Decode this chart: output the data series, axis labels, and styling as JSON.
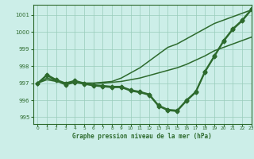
{
  "background_color": "#cceee8",
  "grid_color": "#99ccbb",
  "line_color": "#2d6a2d",
  "title": "Graphe pression niveau de la mer (hPa)",
  "xlim": [
    -0.5,
    23
  ],
  "ylim": [
    994.6,
    1001.6
  ],
  "yticks": [
    995,
    996,
    997,
    998,
    999,
    1000,
    1001
  ],
  "xticks": [
    0,
    1,
    2,
    3,
    4,
    5,
    6,
    7,
    8,
    9,
    10,
    11,
    12,
    13,
    14,
    15,
    16,
    17,
    18,
    19,
    20,
    21,
    22,
    23
  ],
  "series": [
    {
      "x": [
        0,
        1,
        2,
        3,
        4,
        5,
        6,
        7,
        8,
        9,
        10,
        11,
        12,
        13,
        14,
        15,
        16,
        17,
        18,
        19,
        20,
        21,
        22,
        23
      ],
      "y": [
        997.0,
        997.5,
        997.2,
        997.0,
        997.15,
        997.0,
        996.9,
        996.85,
        996.8,
        996.8,
        996.6,
        996.5,
        996.35,
        995.7,
        995.45,
        995.4,
        996.0,
        996.5,
        997.7,
        998.6,
        999.5,
        1000.2,
        1000.7,
        1001.35
      ],
      "marker": "D",
      "markersize": 2.5,
      "linewidth": 1.3
    },
    {
      "x": [
        0,
        1,
        2,
        3,
        4,
        5,
        6,
        7,
        8,
        9,
        10,
        11,
        12,
        13,
        14,
        15,
        16,
        17,
        18,
        19,
        20,
        21,
        22,
        23
      ],
      "y": [
        997.0,
        997.2,
        997.1,
        997.0,
        997.05,
        997.0,
        997.0,
        997.0,
        997.05,
        997.1,
        997.2,
        997.3,
        997.45,
        997.6,
        997.75,
        997.9,
        998.1,
        998.35,
        998.6,
        998.9,
        999.1,
        999.3,
        999.5,
        999.7
      ],
      "marker": null,
      "markersize": 0,
      "linewidth": 1.1
    },
    {
      "x": [
        0,
        1,
        2,
        3,
        4,
        5,
        6,
        7,
        8,
        9,
        10,
        11,
        12,
        13,
        14,
        15,
        16,
        17,
        18,
        19,
        20,
        21,
        22,
        23
      ],
      "y": [
        997.0,
        997.3,
        997.15,
        997.0,
        997.1,
        997.0,
        997.0,
        997.05,
        997.1,
        997.3,
        997.6,
        997.9,
        998.3,
        998.7,
        999.1,
        999.3,
        999.6,
        999.9,
        1000.2,
        1000.5,
        1000.7,
        1000.9,
        1001.1,
        1001.3
      ],
      "marker": null,
      "markersize": 0,
      "linewidth": 1.1
    },
    {
      "x": [
        0,
        1,
        2,
        3,
        4,
        5,
        6,
        7,
        8,
        9,
        10,
        11,
        12,
        13,
        14,
        15,
        16,
        17,
        18,
        19,
        20,
        21,
        22,
        23
      ],
      "y": [
        997.0,
        997.45,
        997.15,
        996.9,
        997.05,
        996.95,
        996.85,
        996.8,
        996.75,
        996.75,
        996.55,
        996.45,
        996.3,
        995.65,
        995.4,
        995.35,
        995.95,
        996.45,
        997.65,
        998.55,
        999.45,
        1000.15,
        1000.65,
        1001.3
      ],
      "marker": "D",
      "markersize": 2.5,
      "linewidth": 1.3
    }
  ]
}
